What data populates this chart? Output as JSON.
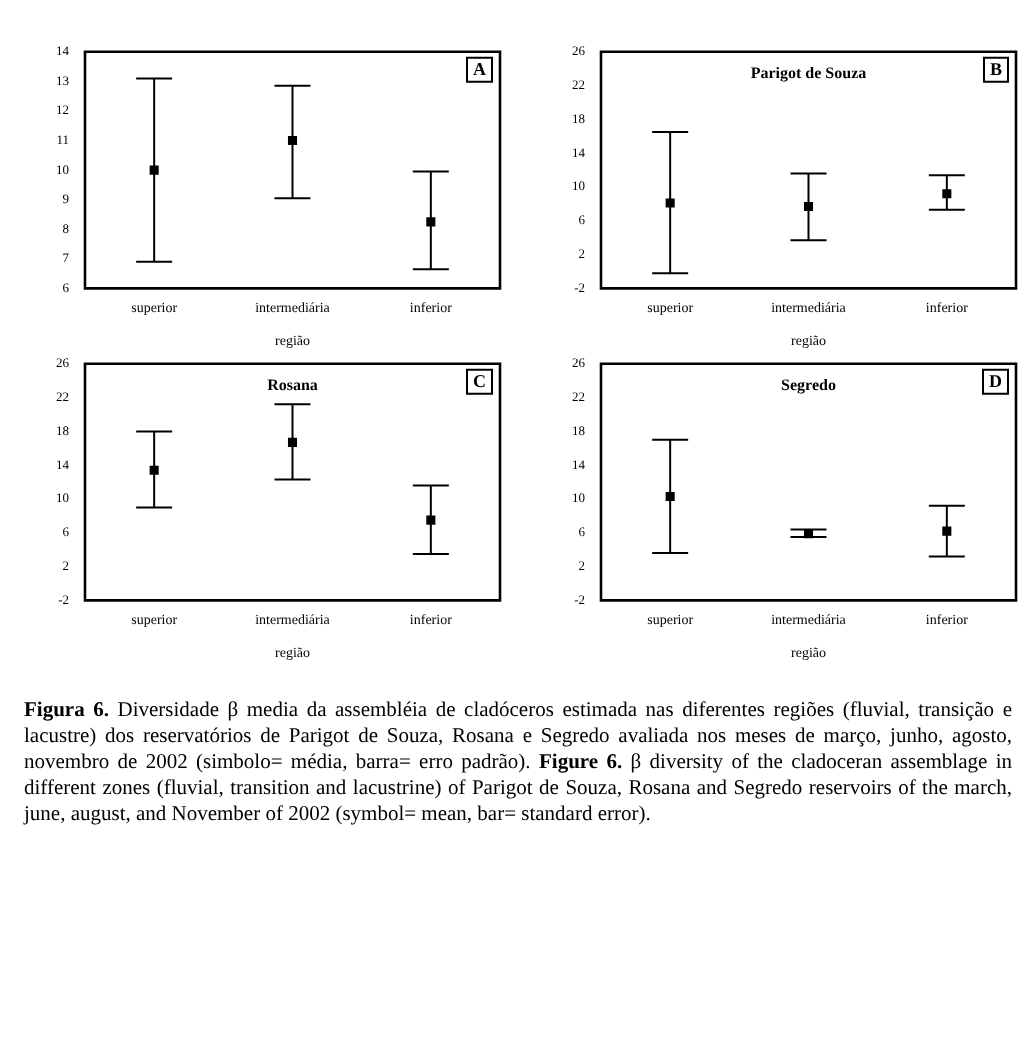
{
  "chart_data": [
    {
      "type": "scatter",
      "categories": [
        "superior",
        "intermediária",
        "inferior"
      ],
      "xlabel": "região",
      "annotations": [
        "A"
      ],
      "marker": "square",
      "grid": false,
      "legend": false,
      "ylim": [
        6,
        14
      ],
      "yticks": [
        6,
        7,
        8,
        9,
        10,
        11,
        12,
        13,
        14
      ],
      "series": [
        {
          "color": "#000000",
          "values": [
            10,
            11,
            8.25
          ],
          "errors": [
            [
              6.9,
              13.1
            ],
            [
              9.05,
              12.85
            ],
            [
              6.65,
              9.95
            ]
          ]
        }
      ]
    },
    {
      "type": "scatter",
      "title": "Parigot de Souza",
      "categories": [
        "superior",
        "intermediária",
        "inferior"
      ],
      "xlabel": "região",
      "annotations": [
        "B"
      ],
      "marker": "square",
      "grid": false,
      "legend": false,
      "ylim": [
        -2,
        26
      ],
      "yticks": [
        -2,
        2,
        6,
        10,
        14,
        18,
        22,
        26
      ],
      "series": [
        {
          "color": "#000000",
          "values": [
            8.1,
            7.7,
            9.2
          ],
          "errors": [
            [
              -0.2,
              16.5
            ],
            [
              3.7,
              11.6
            ],
            [
              7.3,
              11.4
            ]
          ]
        }
      ]
    },
    {
      "type": "scatter",
      "title": "Rosana",
      "categories": [
        "superior",
        "intermediária",
        "inferior"
      ],
      "xlabel": "região",
      "annotations": [
        "C"
      ],
      "marker": "square",
      "grid": false,
      "legend": false,
      "ylim": [
        -2,
        26
      ],
      "yticks": [
        -2,
        2,
        6,
        10,
        14,
        18,
        22,
        26
      ],
      "series": [
        {
          "color": "#000000",
          "values": [
            13.4,
            16.7,
            7.5
          ],
          "errors": [
            [
              9,
              18
            ],
            [
              12.3,
              21.2
            ],
            [
              3.5,
              11.6
            ]
          ]
        }
      ]
    },
    {
      "type": "scatter",
      "title": "Segredo",
      "categories": [
        "superior",
        "intermediária",
        "inferior"
      ],
      "xlabel": "região",
      "annotations": [
        "D"
      ],
      "marker": "square",
      "grid": false,
      "legend": false,
      "ylim": [
        -2,
        26
      ],
      "yticks": [
        -2,
        2,
        6,
        10,
        14,
        18,
        22,
        26
      ],
      "series": [
        {
          "color": "#000000",
          "values": [
            10.3,
            5.9,
            6.2
          ],
          "errors": [
            [
              3.6,
              17
            ],
            [
              5.5,
              6.4
            ],
            [
              3.2,
              9.2
            ]
          ]
        }
      ]
    },
    {
      "type": "other",
      "annotations": [
        "Figura 6.",
        "Diversidade β media da assembléia de cladóceros estimada nas diferentes regiões (fluvial, transição e lacustre) dos reservatórios de Parigot de Souza, Rosana e Segredo avaliada nos meses de março, junho, agosto, novembro de 2002 (simbolo= média, barra= erro padrão).",
        "Figure 6.",
        "β diversity of the cladoceran assemblage in different zones (fluvial, transition and lacustrine) of Parigot de Souza, Rosana and Segredo reservoirs of the march, june, august, and November of 2002 (symbol= mean, bar= standard error)."
      ]
    }
  ]
}
